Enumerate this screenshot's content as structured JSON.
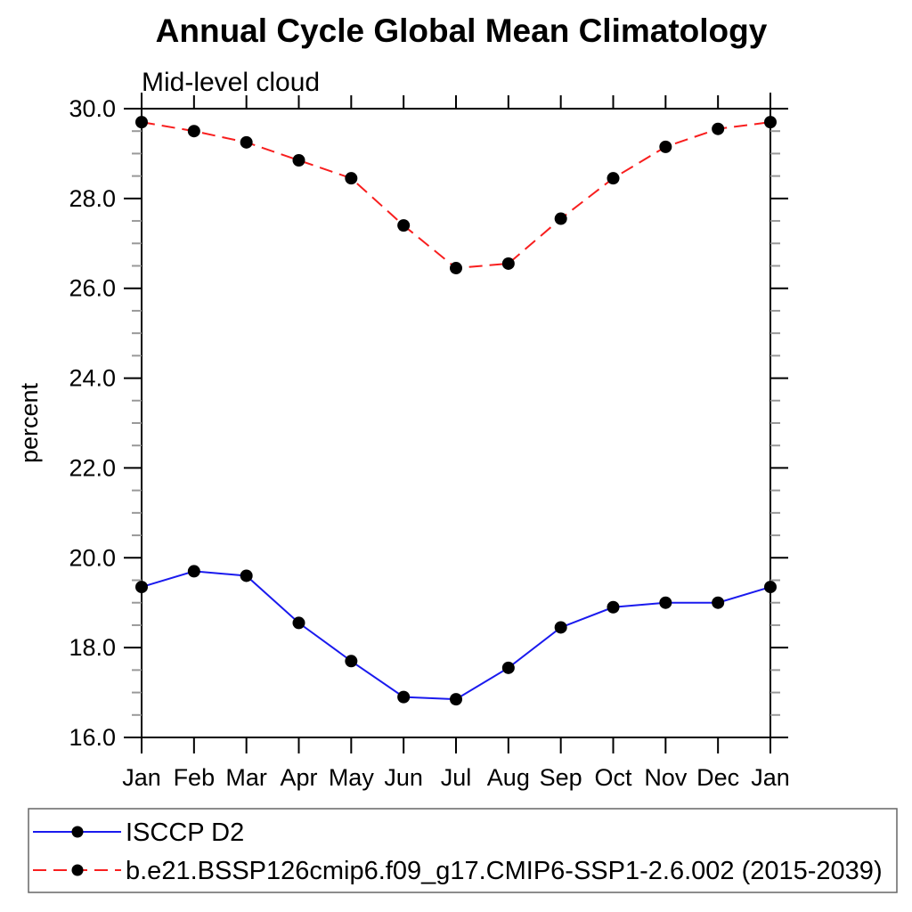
{
  "page": {
    "background": "#ffffff"
  },
  "header": {
    "title": "Annual Cycle Global Mean Climatology",
    "subtitle": "Mid-level cloud"
  },
  "axes": {
    "ylabel": "percent",
    "ytick_labels": [
      "16.0",
      "18.0",
      "20.0",
      "22.0",
      "24.0",
      "26.0",
      "28.0",
      "30.0"
    ],
    "xtick_labels": [
      "Jan",
      "Feb",
      "Mar",
      "Apr",
      "May",
      "Jun",
      "Jul",
      "Aug",
      "Sep",
      "Oct",
      "Nov",
      "Dec",
      "Jan"
    ]
  },
  "colors": {
    "series1": "#1a1aee",
    "series2": "#f81e1e",
    "marker": "#000000",
    "axis": "#000000",
    "minor_tick": "#999999",
    "legend_border": "#666666"
  },
  "chart_data": {
    "type": "line",
    "title": "Annual Cycle Global Mean Climatology",
    "subtitle": "Mid-level cloud",
    "xlabel": "",
    "ylabel": "percent",
    "categories": [
      "Jan",
      "Feb",
      "Mar",
      "Apr",
      "May",
      "Jun",
      "Jul",
      "Aug",
      "Sep",
      "Oct",
      "Nov",
      "Dec",
      "Jan"
    ],
    "ylim": [
      16.0,
      30.0
    ],
    "ytick_major": [
      16.0,
      18.0,
      20.0,
      22.0,
      24.0,
      26.0,
      28.0,
      30.0
    ],
    "ytick_minor_step": 0.5,
    "grid": false,
    "legend_position": "bottom-left",
    "series": [
      {
        "name": "ISCCP D2",
        "line_style": "solid",
        "line_color": "#1a1aee",
        "marker": "filled-circle",
        "marker_color": "#000000",
        "values": [
          19.35,
          19.7,
          19.6,
          18.55,
          17.7,
          16.9,
          16.85,
          17.55,
          18.45,
          18.9,
          19.0,
          19.0,
          19.35
        ]
      },
      {
        "name": "b.e21.BSSP126cmip6.f09_g17.CMIP6-SSP1-2.6.002 (2015-2039)",
        "line_style": "dashed",
        "line_color": "#f81e1e",
        "marker": "filled-circle",
        "marker_color": "#000000",
        "values": [
          29.7,
          29.5,
          29.25,
          28.85,
          28.45,
          27.4,
          26.45,
          26.55,
          27.55,
          28.45,
          29.15,
          29.55,
          29.7
        ]
      }
    ]
  }
}
